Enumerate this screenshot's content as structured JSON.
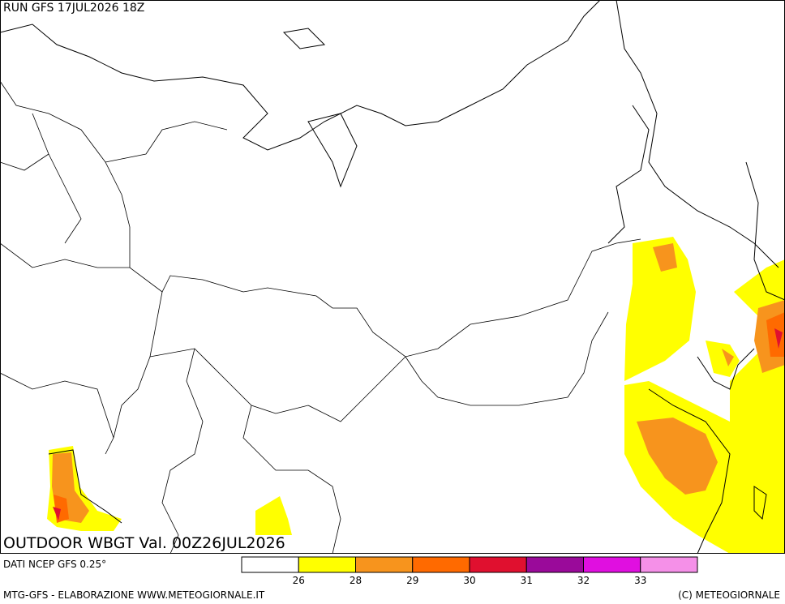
{
  "header": {
    "run": "RUN GFS 17JUL2026 18Z"
  },
  "map": {
    "title": "OUTDOOR WBGT Val. 00Z26JUL2026"
  },
  "legend": {
    "source": "DATI NCEP GFS 0.25°",
    "colors": [
      "#ffffff",
      "#ffff00",
      "#f7941d",
      "#ff6a00",
      "#e0102f",
      "#9a0a9a",
      "#e00fe0",
      "#f590e8"
    ],
    "ticks": [
      26,
      28,
      29,
      30,
      31,
      32,
      33
    ]
  },
  "footer": {
    "left": "MTG-GFS - ELABORAZIONE WWW.METEOGIORNALE.IT",
    "right": "(C) METEOGIORNALE"
  }
}
